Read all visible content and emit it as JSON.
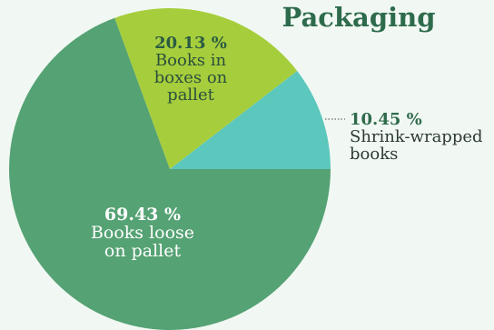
{
  "chart_data": {
    "type": "pie",
    "title": "Packaging",
    "slices": [
      {
        "label": "Shrink-wrapped books",
        "label_lines": [
          "Shrink-wrapped",
          "books"
        ],
        "value": 10.45,
        "value_label": "10.45 %",
        "color": "#5cc7bd"
      },
      {
        "label": "Books in boxes on pallet",
        "label_lines": [
          "Books in",
          "boxes on",
          "pallet"
        ],
        "value": 20.13,
        "value_label": "20.13 %",
        "color": "#a6ce3c"
      },
      {
        "label": "Books loose on pallet",
        "label_lines": [
          "Books loose",
          "on pallet"
        ],
        "value": 69.43,
        "value_label": "69.43 %",
        "color": "#55a274"
      }
    ],
    "start": "right, counter-clockwise",
    "legend": "none"
  }
}
